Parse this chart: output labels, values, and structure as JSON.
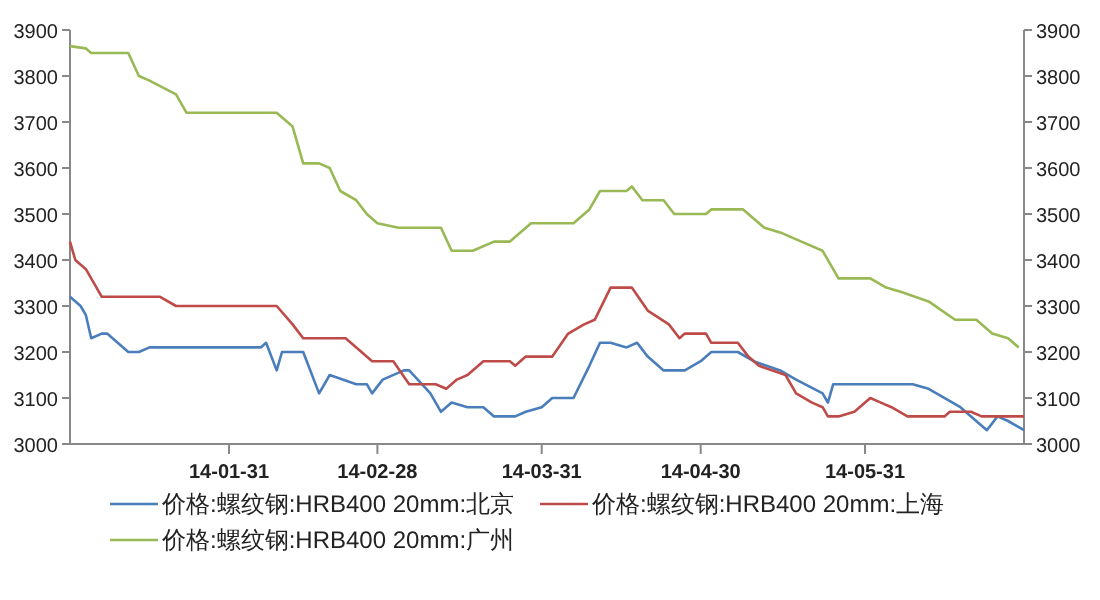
{
  "chart_data": {
    "type": "line",
    "xlim": [
      "--01-01",
      "--06-30"
    ],
    "xticks": [
      {
        "value": "--01-31",
        "label": "14-01-31"
      },
      {
        "value": "--02-28",
        "label": "14-02-28"
      },
      {
        "value": "--03-31",
        "label": "14-03-31"
      },
      {
        "value": "--04-30",
        "label": "14-04-30"
      },
      {
        "value": "--05-31",
        "label": "14-05-31"
      }
    ],
    "ylim": [
      3000,
      3900
    ],
    "yticks": [
      3000,
      3100,
      3200,
      3300,
      3400,
      3500,
      3600,
      3700,
      3800,
      3900
    ],
    "y2lim": [
      3000,
      3900
    ],
    "y2ticks": [
      3000,
      3100,
      3200,
      3300,
      3400,
      3500,
      3600,
      3700,
      3800,
      3900
    ],
    "legend": "bottom",
    "series": [
      {
        "name": "价格:螺纹钢:HRB400 20mm:北京",
        "color": "#4a7ebb",
        "x": [
          "--01-01",
          "--01-03",
          "--01-04",
          "--01-05",
          "--01-07",
          "--01-08",
          "--01-10",
          "--01-12",
          "--01-14",
          "--01-16",
          "--02-06",
          "--02-07",
          "--02-09",
          "--02-10",
          "--02-14",
          "--02-17",
          "--02-19",
          "--02-24",
          "--02-26",
          "--02-27",
          "--03-01",
          "--03-05",
          "--03-06",
          "--03-10",
          "--03-12",
          "--03-14",
          "--03-17",
          "--03-20",
          "--03-22",
          "--03-26",
          "--03-28",
          "--03-31",
          "--04-02",
          "--04-06",
          "--04-09",
          "--04-11",
          "--04-13",
          "--04-16",
          "--04-18",
          "--04-20",
          "--04-23",
          "--04-27",
          "--04-30",
          "--05-02",
          "--05-07",
          "--05-10",
          "--05-15",
          "--05-18",
          "--05-23",
          "--05-24",
          "--05-25",
          "--06-09",
          "--06-12",
          "--06-18",
          "--06-20",
          "--06-23",
          "--06-25",
          "--06-27",
          "--06-30"
        ],
        "values": [
          3320,
          3300,
          3280,
          3230,
          3240,
          3240,
          3220,
          3200,
          3200,
          3210,
          3210,
          3220,
          3160,
          3200,
          3200,
          3110,
          3150,
          3130,
          3130,
          3110,
          3140,
          3160,
          3160,
          3110,
          3070,
          3090,
          3080,
          3080,
          3060,
          3060,
          3070,
          3080,
          3100,
          3100,
          3170,
          3220,
          3220,
          3210,
          3220,
          3190,
          3160,
          3160,
          3180,
          3200,
          3200,
          3180,
          3160,
          3140,
          3110,
          3090,
          3130,
          3130,
          3120,
          3080,
          3060,
          3030,
          3060,
          3050,
          3030
        ]
      },
      {
        "name": "价格:螺纹钢:HRB400 20mm:上海",
        "color": "#be4b48",
        "x": [
          "--01-01",
          "--01-02",
          "--01-04",
          "--01-07",
          "--01-18",
          "--01-21",
          "--02-09",
          "--02-12",
          "--02-14",
          "--02-22",
          "--02-25",
          "--02-27",
          "--03-03",
          "--03-06",
          "--03-11",
          "--03-13",
          "--03-15",
          "--03-17",
          "--03-20",
          "--03-25",
          "--03-26",
          "--03-28",
          "--04-02",
          "--04-05",
          "--04-08",
          "--04-10",
          "--04-13",
          "--04-17",
          "--04-20",
          "--04-24",
          "--04-26",
          "--04-27",
          "--05-01",
          "--05-02",
          "--05-07",
          "--05-09",
          "--05-11",
          "--05-16",
          "--05-18",
          "--05-21",
          "--05-23",
          "--05-24",
          "--05-26",
          "--05-29",
          "--06-01",
          "--06-03",
          "--06-05",
          "--06-08",
          "--06-15",
          "--06-16",
          "--06-20",
          "--06-22",
          "--06-30"
        ],
        "values": [
          3440,
          3400,
          3380,
          3320,
          3320,
          3300,
          3300,
          3260,
          3230,
          3230,
          3200,
          3180,
          3180,
          3130,
          3130,
          3120,
          3140,
          3150,
          3180,
          3180,
          3170,
          3190,
          3190,
          3240,
          3260,
          3270,
          3340,
          3340,
          3290,
          3260,
          3230,
          3240,
          3240,
          3220,
          3220,
          3190,
          3170,
          3150,
          3110,
          3090,
          3080,
          3060,
          3060,
          3070,
          3100,
          3090,
          3080,
          3060,
          3060,
          3070,
          3070,
          3060,
          3060
        ]
      },
      {
        "name": "价格:螺纹钢:HRB400 20mm:广州",
        "color": "#98b954",
        "x": [
          "--01-01",
          "--01-04",
          "--01-05",
          "--01-12",
          "--01-14",
          "--01-16",
          "--01-21",
          "--01-23",
          "--02-09",
          "--02-12",
          "--02-14",
          "--02-17",
          "--02-19",
          "--02-21",
          "--02-24",
          "--02-26",
          "--02-28",
          "--03-04",
          "--03-12",
          "--03-14",
          "--03-18",
          "--03-22",
          "--03-25",
          "--03-29",
          "--04-06",
          "--04-09",
          "--04-11",
          "--04-16",
          "--04-17",
          "--04-19",
          "--04-23",
          "--04-25",
          "--05-01",
          "--05-02",
          "--05-08",
          "--05-12",
          "--05-15",
          "--05-19",
          "--05-23",
          "--05-26",
          "--06-01",
          "--06-04",
          "--06-07",
          "--06-12",
          "--06-17",
          "--06-21",
          "--06-24",
          "--06-27",
          "--06-29"
        ],
        "values": [
          3865,
          3860,
          3850,
          3850,
          3800,
          3790,
          3760,
          3720,
          3720,
          3690,
          3610,
          3610,
          3600,
          3550,
          3530,
          3500,
          3480,
          3470,
          3470,
          3420,
          3420,
          3440,
          3440,
          3480,
          3480,
          3510,
          3550,
          3550,
          3560,
          3530,
          3530,
          3500,
          3500,
          3510,
          3510,
          3470,
          3460,
          3440,
          3420,
          3360,
          3360,
          3340,
          3330,
          3310,
          3270,
          3270,
          3240,
          3230,
          3210
        ]
      }
    ]
  }
}
